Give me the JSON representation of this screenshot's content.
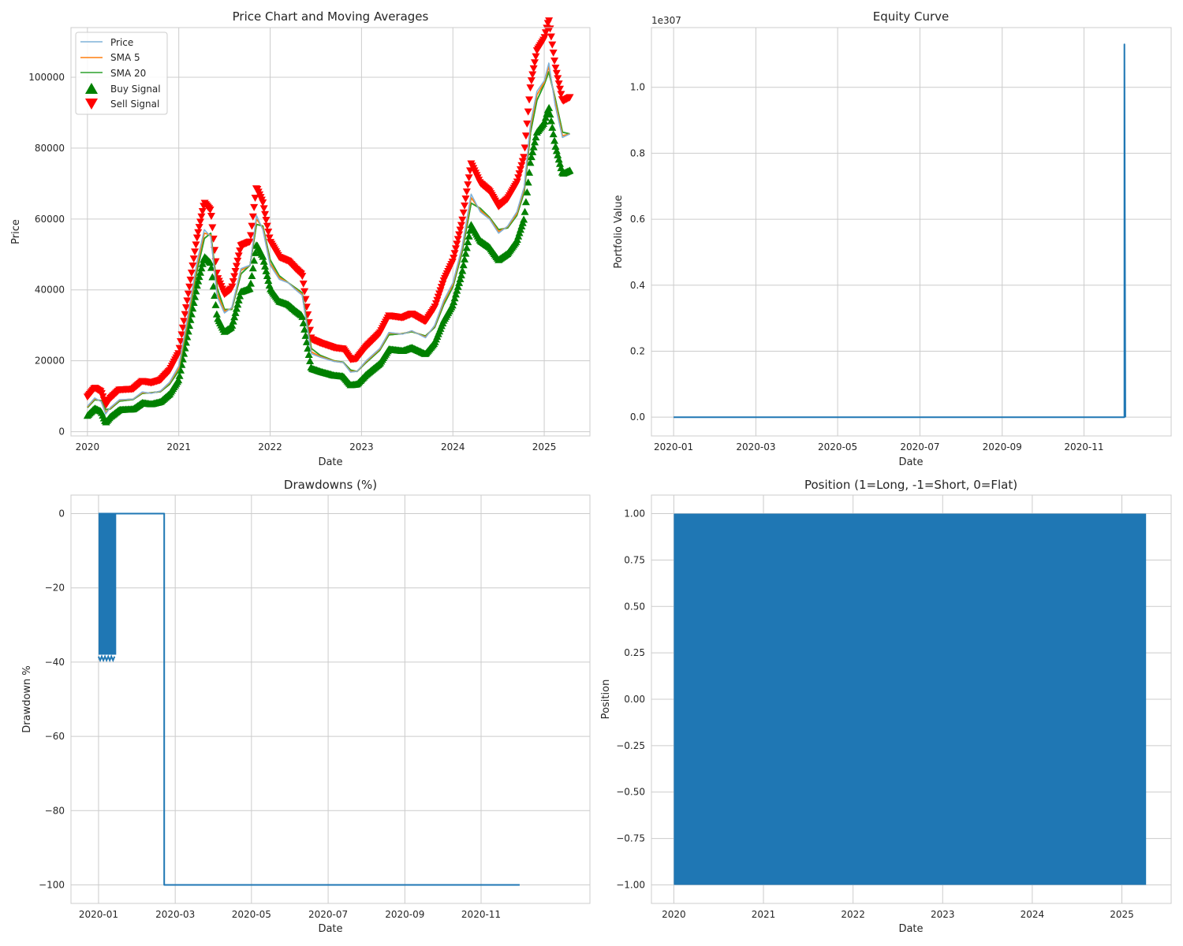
{
  "colors": {
    "price": "#7fb2d9",
    "sma5": "#ff7f0e",
    "sma20": "#2ca02c",
    "buy": "#008000",
    "sell": "#ff0000",
    "line": "#1f77b4",
    "grid": "#cccccc"
  },
  "chart_data": [
    {
      "type": "line",
      "title": "Price Chart and Moving Averages",
      "xlabel": "Date",
      "ylabel": "Price",
      "x_range": [
        2019.82,
        2025.5
      ],
      "ylim": [
        -1200,
        114000
      ],
      "xticks": [
        2020,
        2021,
        2022,
        2023,
        2024,
        2025
      ],
      "xtick_labels": [
        "2020",
        "2021",
        "2022",
        "2023",
        "2024",
        "2025"
      ],
      "yticks": [
        0,
        20000,
        40000,
        60000,
        80000,
        100000
      ],
      "ytick_labels": [
        "0",
        "20000",
        "40000",
        "60000",
        "80000",
        "100000"
      ],
      "legend": {
        "position": "top-left",
        "entries": [
          "Price",
          "SMA 5",
          "SMA 20",
          "Buy Signal",
          "Sell Signal"
        ]
      },
      "series": [
        {
          "name": "Price",
          "x": [
            2020.0,
            2020.08,
            2020.15,
            2020.2,
            2020.25,
            2020.35,
            2020.5,
            2020.6,
            2020.7,
            2020.8,
            2020.9,
            2021.0,
            2021.1,
            2021.2,
            2021.28,
            2021.35,
            2021.42,
            2021.5,
            2021.58,
            2021.68,
            2021.78,
            2021.85,
            2021.92,
            2022.0,
            2022.1,
            2022.2,
            2022.28,
            2022.35,
            2022.45,
            2022.55,
            2022.7,
            2022.8,
            2022.88,
            2022.95,
            2023.05,
            2023.2,
            2023.3,
            2023.45,
            2023.55,
            2023.7,
            2023.8,
            2023.9,
            2024.0,
            2024.1,
            2024.2,
            2024.3,
            2024.4,
            2024.5,
            2024.6,
            2024.7,
            2024.78,
            2024.85,
            2024.92,
            2025.0,
            2025.05,
            2025.12,
            2025.2,
            2025.28
          ],
          "y": [
            7200,
            9500,
            8500,
            5000,
            6800,
            9000,
            9200,
            11200,
            10800,
            11500,
            14000,
            18500,
            33000,
            48000,
            57000,
            55000,
            38000,
            33500,
            35000,
            46000,
            47000,
            61000,
            57000,
            47000,
            43000,
            42000,
            40000,
            38500,
            22000,
            21000,
            19800,
            19500,
            16800,
            17000,
            20000,
            23500,
            28000,
            27500,
            28500,
            26500,
            30000,
            37000,
            42000,
            52000,
            67000,
            62000,
            60000,
            56000,
            58000,
            62000,
            69000,
            87000,
            96000,
            99000,
            104000,
            92000,
            83000,
            84000
          ]
        },
        {
          "name": "SMA 5",
          "x": [
            2020.0,
            2020.08,
            2020.15,
            2020.2,
            2020.25,
            2020.35,
            2020.5,
            2020.6,
            2020.7,
            2020.8,
            2020.9,
            2021.0,
            2021.1,
            2021.2,
            2021.28,
            2021.35,
            2021.42,
            2021.5,
            2021.58,
            2021.68,
            2021.78,
            2021.85,
            2021.92,
            2022.0,
            2022.1,
            2022.2,
            2022.28,
            2022.35,
            2022.45,
            2022.55,
            2022.7,
            2022.8,
            2022.88,
            2022.95,
            2023.05,
            2023.2,
            2023.3,
            2023.45,
            2023.55,
            2023.7,
            2023.8,
            2023.9,
            2024.0,
            2024.1,
            2024.2,
            2024.3,
            2024.4,
            2024.5,
            2024.6,
            2024.7,
            2024.78,
            2024.85,
            2024.92,
            2025.0,
            2025.05,
            2025.12,
            2025.2,
            2025.28
          ],
          "y": [
            7000,
            9300,
            8600,
            5400,
            6600,
            8900,
            9200,
            11000,
            10900,
            11400,
            13800,
            18000,
            32000,
            47000,
            56000,
            55500,
            39000,
            34000,
            34800,
            45500,
            47000,
            60000,
            57500,
            47500,
            43500,
            42000,
            40200,
            38800,
            22500,
            21200,
            19900,
            19500,
            17000,
            17000,
            19800,
            23300,
            27800,
            27600,
            28400,
            26700,
            29800,
            36500,
            41500,
            51500,
            66000,
            62500,
            60200,
            56500,
            57800,
            61500,
            68500,
            86000,
            95000,
            98500,
            103000,
            93000,
            83500,
            84000
          ]
        },
        {
          "name": "SMA 20",
          "x": [
            2020.0,
            2020.08,
            2020.15,
            2020.2,
            2020.25,
            2020.35,
            2020.5,
            2020.6,
            2020.7,
            2020.8,
            2020.9,
            2021.0,
            2021.1,
            2021.2,
            2021.28,
            2021.35,
            2021.42,
            2021.5,
            2021.58,
            2021.68,
            2021.78,
            2021.85,
            2021.92,
            2022.0,
            2022.1,
            2022.2,
            2022.28,
            2022.35,
            2022.45,
            2022.55,
            2022.7,
            2022.8,
            2022.88,
            2022.95,
            2023.05,
            2023.2,
            2023.3,
            2023.45,
            2023.55,
            2023.7,
            2023.8,
            2023.9,
            2024.0,
            2024.1,
            2024.2,
            2024.3,
            2024.4,
            2024.5,
            2024.6,
            2024.7,
            2024.78,
            2024.85,
            2024.92,
            2025.0,
            2025.05,
            2025.12,
            2025.2,
            2025.28
          ],
          "y": [
            6800,
            9000,
            8800,
            6200,
            6400,
            8600,
            9100,
            10800,
            11000,
            11300,
            13400,
            17200,
            30500,
            45500,
            54500,
            56000,
            40500,
            34500,
            34500,
            44500,
            47000,
            58500,
            58000,
            48500,
            44000,
            42000,
            40500,
            39200,
            23500,
            21500,
            20000,
            19600,
            17400,
            17000,
            19500,
            23000,
            27300,
            27700,
            28200,
            27000,
            29400,
            35800,
            40800,
            50500,
            64500,
            63000,
            60500,
            57000,
            57500,
            61000,
            67500,
            84500,
            93500,
            98000,
            101500,
            94000,
            84500,
            84000
          ]
        }
      ],
      "buy_signal": {
        "name": "Buy Signal",
        "x": [
          2020.0,
          2020.08,
          2020.2,
          2020.35,
          2020.6,
          2020.9,
          2021.05,
          2021.2,
          2021.35,
          2021.5,
          2021.68,
          2021.85,
          2022.05,
          2022.25,
          2022.45,
          2022.62,
          2022.88,
          2023.1,
          2023.3,
          2023.55,
          2023.75,
          2023.95,
          2024.15,
          2024.35,
          2024.55,
          2024.7,
          2024.88,
          2025.05,
          2025.2
        ],
        "y": [
          5800,
          7500,
          3500,
          6000,
          9000,
          11500,
          27000,
          44000,
          40000,
          29000,
          40000,
          53000,
          40000,
          33000,
          17500,
          17500,
          14500,
          19000,
          24000,
          25000,
          24000,
          35000,
          50000,
          55000,
          50000,
          56000,
          85000,
          88000,
          77000
        ]
      },
      "sell_signal": {
        "name": "Sell Signal",
        "x": [
          2020.0,
          2020.08,
          2020.2,
          2020.35,
          2020.6,
          2020.9,
          2021.05,
          2021.2,
          2021.28,
          2021.5,
          2021.68,
          2021.85,
          2022.05,
          2022.25,
          2022.45,
          2022.62,
          2022.88,
          2023.1,
          2023.3,
          2023.55,
          2023.75,
          2023.95,
          2024.15,
          2024.35,
          2024.55,
          2024.7,
          2024.88,
          2025.05,
          2025.2
        ],
        "y": [
          9500,
          11200,
          7500,
          10500,
          12000,
          14500,
          42500,
          62000,
          65500,
          41000,
          53000,
          69000,
          48500,
          48500,
          32500,
          26000,
          22000,
          26000,
          31500,
          32500,
          30000,
          47000,
          74000,
          72000,
          63000,
          66000,
          106000,
          109000,
          88000
        ]
      }
    },
    {
      "type": "line",
      "title": "Equity Curve",
      "xlabel": "Date",
      "ylabel": "Portfolio Value",
      "offset_text": "1e307",
      "x_range": [
        2019.955,
        2021.01
      ],
      "ylim": [
        -0.057,
        1.181
      ],
      "xticks": [
        2020.0,
        2020.167,
        2020.333,
        2020.5,
        2020.667,
        2020.833
      ],
      "xtick_labels": [
        "2020-01",
        "2020-03",
        "2020-05",
        "2020-07",
        "2020-09",
        "2020-11"
      ],
      "yticks": [
        0.0,
        0.2,
        0.4,
        0.6,
        0.8,
        1.0
      ],
      "ytick_labels": [
        "0.0",
        "0.2",
        "0.4",
        "0.6",
        "0.8",
        "1.0"
      ],
      "series": [
        {
          "x": [
            2020.0,
            2020.915,
            2020.915,
            2020.917
          ],
          "y": [
            0.0,
            0.0,
            1.13,
            0.0
          ]
        }
      ]
    },
    {
      "type": "line",
      "title": "Drawdowns (%)",
      "xlabel": "Date",
      "ylabel": "Drawdown %",
      "x_range": [
        2019.94,
        2021.07
      ],
      "ylim": [
        -105,
        5
      ],
      "xticks": [
        2020.0,
        2020.167,
        2020.333,
        2020.5,
        2020.667,
        2020.833
      ],
      "xtick_labels": [
        "2020-01",
        "2020-03",
        "2020-05",
        "2020-07",
        "2020-09",
        "2020-11"
      ],
      "yticks": [
        0,
        -20,
        -40,
        -60,
        -80,
        -100
      ],
      "ytick_labels": [
        "0",
        "−20",
        "−40",
        "−60",
        "−80",
        "−100"
      ],
      "series": [
        {
          "x": [
            2020.0,
            2020.035,
            2020.035,
            2020.143,
            2020.143,
            2020.917
          ],
          "y": [
            0,
            0,
            0,
            0,
            -100,
            -100
          ]
        }
      ],
      "oscillation_band": {
        "x": [
          2020.0,
          2020.035
        ],
        "ymin": -38,
        "ymax": 0
      }
    },
    {
      "type": "line",
      "title": "Position (1=Long, -1=Short, 0=Flat)",
      "xlabel": "Date",
      "ylabel": "Position",
      "x_range": [
        2019.75,
        2025.55
      ],
      "ylim": [
        -1.1,
        1.1
      ],
      "xticks": [
        2020,
        2021,
        2022,
        2023,
        2024,
        2025
      ],
      "xtick_labels": [
        "2020",
        "2021",
        "2022",
        "2023",
        "2024",
        "2025"
      ],
      "yticks": [
        1.0,
        0.75,
        0.5,
        0.25,
        0.0,
        -0.25,
        -0.5,
        -0.75,
        -1.0
      ],
      "ytick_labels": [
        "1.00",
        "0.75",
        "0.50",
        "0.25",
        "0.00",
        "−0.25",
        "−0.50",
        "−0.75",
        "−1.00"
      ],
      "series": [
        {
          "x": [
            2020.0,
            2025.27
          ],
          "ymin": -1,
          "ymax": 1,
          "note_type": "alternating"
        }
      ]
    }
  ]
}
